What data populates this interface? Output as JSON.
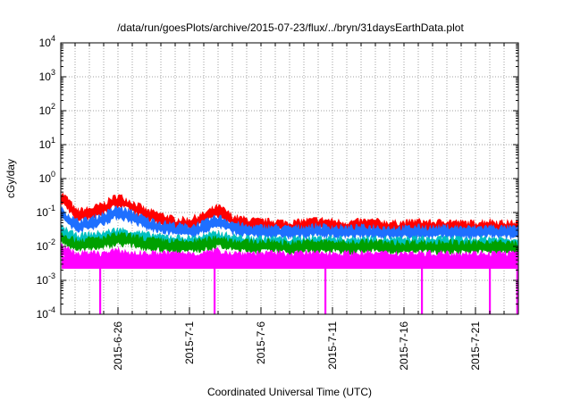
{
  "chart_data": {
    "type": "line",
    "title": "/data/run/goesPlots/archive/2015-07-23/flux/../bryn/31daysEarthData.plot",
    "xlabel": "Coordinated Universal Time (UTC)",
    "ylabel": "cGy/day",
    "yscale": "log",
    "ylim": [
      0.0001,
      10000
    ],
    "xlim": [
      "2015-06-22",
      "2015-07-24"
    ],
    "grid": true,
    "legend": "none",
    "x_ticks": [
      {
        "label": "2015-6-26",
        "date": "2015-06-26"
      },
      {
        "label": "2015-7-1",
        "date": "2015-07-01"
      },
      {
        "label": "2015-7-6",
        "date": "2015-07-06"
      },
      {
        "label": "2015-7-11",
        "date": "2015-07-11"
      },
      {
        "label": "2015-7-16",
        "date": "2015-07-16"
      },
      {
        "label": "2015-7-21",
        "date": "2015-07-21"
      }
    ],
    "y_ticks": [
      {
        "mantissa": "10",
        "exponent": "4",
        "value": 10000
      },
      {
        "mantissa": "10",
        "exponent": "3",
        "value": 1000
      },
      {
        "mantissa": "10",
        "exponent": "2",
        "value": 100
      },
      {
        "mantissa": "10",
        "exponent": "1",
        "value": 10
      },
      {
        "mantissa": "10",
        "exponent": "0",
        "value": 1
      },
      {
        "mantissa": "10",
        "exponent": "-1",
        "value": 0.1
      },
      {
        "mantissa": "10",
        "exponent": "-2",
        "value": 0.01
      },
      {
        "mantissa": "10",
        "exponent": "-3",
        "value": 0.001
      },
      {
        "mantissa": "10",
        "exponent": "-4",
        "value": 0.0001
      }
    ],
    "x": [
      "2015-06-22",
      "2015-06-23",
      "2015-06-24",
      "2015-06-25",
      "2015-06-26",
      "2015-06-27",
      "2015-06-28",
      "2015-06-29",
      "2015-06-30",
      "2015-07-01",
      "2015-07-02",
      "2015-07-03",
      "2015-07-04",
      "2015-07-05",
      "2015-07-06",
      "2015-07-07",
      "2015-07-08",
      "2015-07-09",
      "2015-07-10",
      "2015-07-11",
      "2015-07-12",
      "2015-07-13",
      "2015-07-14",
      "2015-07-15",
      "2015-07-16",
      "2015-07-17",
      "2015-07-18",
      "2015-07-19",
      "2015-07-20",
      "2015-07-21",
      "2015-07-22",
      "2015-07-23",
      "2015-07-24"
    ],
    "series": [
      {
        "color": "#ff0000",
        "values": [
          0.3,
          0.09,
          0.1,
          0.14,
          0.25,
          0.16,
          0.09,
          0.07,
          0.05,
          0.05,
          0.07,
          0.12,
          0.06,
          0.05,
          0.045,
          0.045,
          0.04,
          0.045,
          0.05,
          0.045,
          0.04,
          0.045,
          0.045,
          0.04,
          0.04,
          0.045,
          0.04,
          0.045,
          0.04,
          0.04,
          0.045,
          0.04,
          0.04
        ]
      },
      {
        "color": "#1e6fff",
        "values": [
          0.1,
          0.045,
          0.05,
          0.07,
          0.11,
          0.08,
          0.05,
          0.04,
          0.035,
          0.03,
          0.04,
          0.06,
          0.04,
          0.03,
          0.03,
          0.03,
          0.028,
          0.03,
          0.032,
          0.03,
          0.028,
          0.03,
          0.03,
          0.028,
          0.028,
          0.03,
          0.028,
          0.03,
          0.028,
          0.028,
          0.03,
          0.028,
          0.028
        ]
      },
      {
        "color": "#00c0c0",
        "values": [
          0.03,
          0.017,
          0.018,
          0.02,
          0.025,
          0.022,
          0.018,
          0.016,
          0.015,
          0.014,
          0.016,
          0.02,
          0.016,
          0.014,
          0.014,
          0.014,
          0.013,
          0.014,
          0.014,
          0.014,
          0.013,
          0.014,
          0.014,
          0.013,
          0.013,
          0.014,
          0.013,
          0.014,
          0.013,
          0.013,
          0.014,
          0.013,
          0.013
        ]
      },
      {
        "color": "#00a000",
        "values": [
          0.02,
          0.012,
          0.013,
          0.014,
          0.018,
          0.016,
          0.013,
          0.012,
          0.011,
          0.011,
          0.012,
          0.015,
          0.012,
          0.011,
          0.011,
          0.011,
          0.01,
          0.011,
          0.011,
          0.011,
          0.01,
          0.011,
          0.011,
          0.01,
          0.01,
          0.011,
          0.01,
          0.011,
          0.01,
          0.01,
          0.011,
          0.01,
          0.01
        ]
      },
      {
        "color": "#ff00ff",
        "values": [
          0.008,
          0.005,
          0.005,
          0.005,
          0.006,
          0.005,
          0.005,
          0.005,
          0.005,
          0.005,
          0.005,
          0.006,
          0.005,
          0.005,
          0.005,
          0.005,
          0.005,
          0.005,
          0.005,
          0.005,
          0.005,
          0.005,
          0.005,
          0.005,
          0.005,
          0.005,
          0.005,
          0.005,
          0.005,
          0.005,
          0.005,
          0.005,
          0.005
        ]
      }
    ],
    "dropouts": [
      {
        "date": "2015-06-24T18:00",
        "min": 0.0001
      },
      {
        "date": "2015-07-02T18:00",
        "min": 0.0001
      },
      {
        "date": "2015-07-10T12:00",
        "min": 0.0001
      },
      {
        "date": "2015-07-17T06:00",
        "min": 0.0001
      },
      {
        "date": "2015-07-22T00:00",
        "min": 0.0001
      },
      {
        "date": "2015-07-23T22:00",
        "min": 0.0001
      }
    ]
  }
}
